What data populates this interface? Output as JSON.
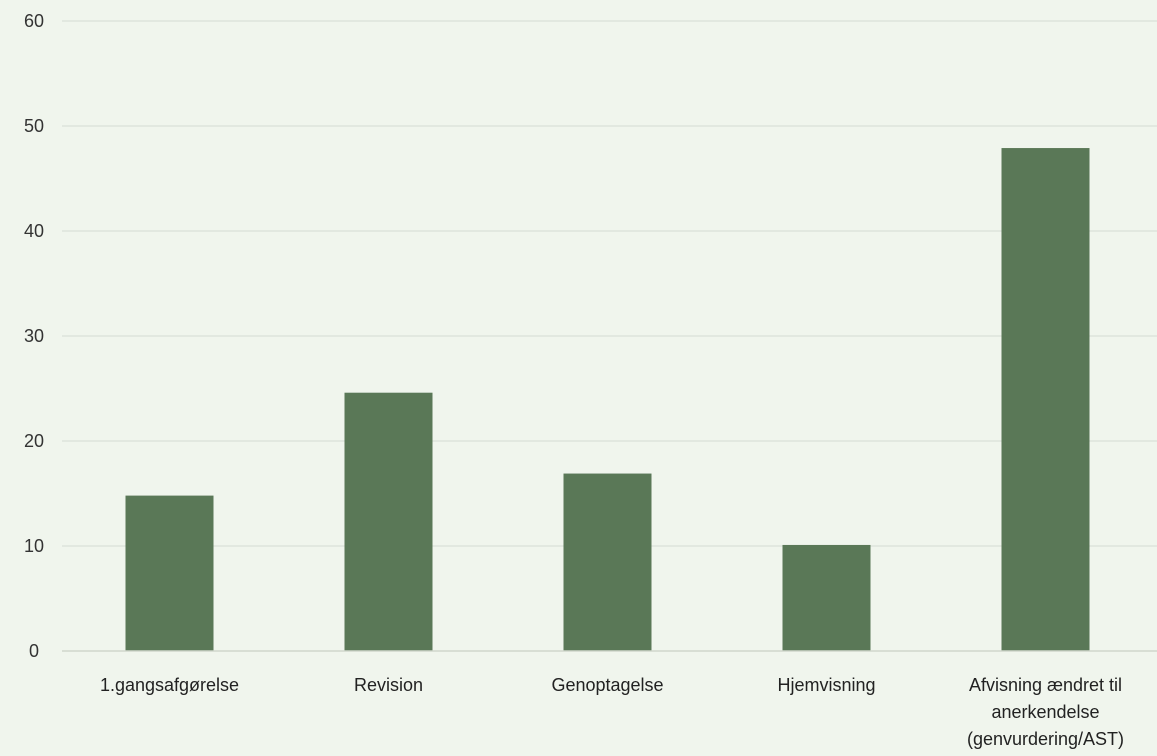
{
  "chart_data": {
    "type": "bar",
    "categories": [
      [
        "1.gangsafgørelse"
      ],
      [
        "Revision"
      ],
      [
        "Genoptagelse"
      ],
      [
        "Hjemvisning"
      ],
      [
        "Afvisning ændret til",
        "anerkendelse",
        "(genvurdering/AST)"
      ]
    ],
    "values": [
      14.8,
      24.6,
      16.9,
      10.1,
      47.9
    ],
    "yticks": [
      "0",
      "10",
      "20",
      "30",
      "40",
      "50",
      "60"
    ],
    "ylim": [
      0,
      60
    ],
    "title": "",
    "xlabel": "",
    "ylabel": "",
    "grid": true,
    "legend": "none",
    "bar_color": "#5a7857",
    "background": "#f0f5ed"
  }
}
